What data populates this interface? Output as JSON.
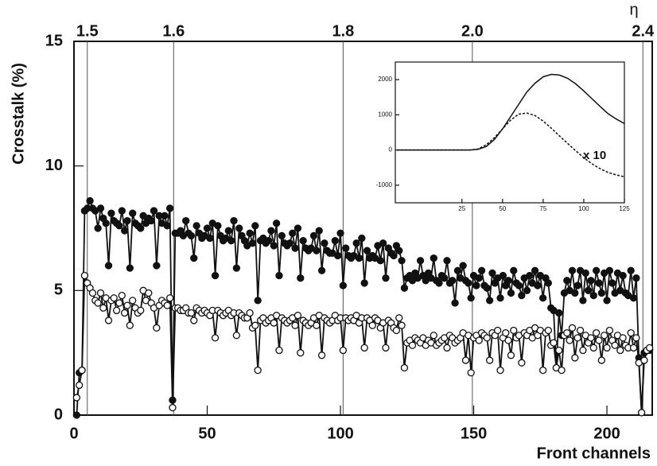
{
  "chart_data": [
    {
      "type": "line",
      "x_label": "Front channels",
      "y_label": "Crosstalk (%)",
      "eta_label": "η",
      "x": [
        1,
        2,
        3,
        4,
        5,
        6,
        7,
        8,
        9,
        10,
        11,
        12,
        13,
        14,
        15,
        16,
        17,
        18,
        19,
        20,
        21,
        22,
        23,
        24,
        25,
        26,
        27,
        28,
        29,
        30,
        31,
        32,
        33,
        34,
        35,
        36,
        37,
        38,
        39,
        40,
        41,
        42,
        43,
        44,
        45,
        46,
        47,
        48,
        49,
        50,
        51,
        52,
        53,
        54,
        55,
        56,
        57,
        58,
        59,
        60,
        61,
        62,
        63,
        64,
        65,
        66,
        67,
        68,
        69,
        70,
        71,
        72,
        73,
        74,
        75,
        76,
        77,
        78,
        79,
        80,
        81,
        82,
        83,
        84,
        85,
        86,
        87,
        88,
        89,
        90,
        91,
        92,
        93,
        94,
        95,
        96,
        97,
        98,
        99,
        100,
        101,
        102,
        103,
        104,
        105,
        106,
        107,
        108,
        109,
        110,
        111,
        112,
        113,
        114,
        115,
        116,
        117,
        118,
        119,
        120,
        121,
        122,
        123,
        124,
        125,
        126,
        127,
        128,
        129,
        130,
        131,
        132,
        133,
        134,
        135,
        136,
        137,
        138,
        139,
        140,
        141,
        142,
        143,
        144,
        145,
        146,
        147,
        148,
        149,
        150,
        151,
        152,
        153,
        154,
        155,
        156,
        157,
        158,
        159,
        160,
        161,
        162,
        163,
        164,
        165,
        166,
        167,
        168,
        169,
        170,
        171,
        172,
        173,
        174,
        175,
        176,
        177,
        178,
        179,
        180,
        181,
        182,
        183,
        184,
        185,
        186,
        187,
        188,
        189,
        190,
        191,
        192,
        193,
        194,
        195,
        196,
        197,
        198,
        199,
        200,
        201,
        202,
        203,
        204,
        205,
        206,
        207,
        208,
        209,
        210,
        211,
        212,
        213,
        214,
        215,
        216
      ],
      "series": [
        {
          "marker": "filled",
          "color": "#111111",
          "values": [
            0.0,
            1.7,
            1.8,
            8.2,
            8.3,
            8.6,
            8.3,
            8.2,
            7.5,
            8.3,
            7.9,
            7.7,
            6.0,
            8.1,
            7.8,
            7.7,
            7.6,
            8.2,
            7.4,
            7.8,
            5.9,
            8.1,
            7.7,
            7.6,
            7.5,
            8.0,
            7.7,
            7.9,
            7.8,
            8.2,
            6.0,
            8.0,
            7.7,
            8.0,
            7.6,
            8.3,
            0.6,
            7.3,
            7.3,
            7.4,
            7.2,
            7.8,
            7.3,
            7.2,
            6.3,
            7.6,
            7.3,
            7.1,
            7.2,
            7.5,
            7.1,
            7.7,
            5.6,
            7.6,
            7.2,
            7.0,
            7.1,
            7.4,
            7.0,
            7.8,
            5.9,
            7.5,
            7.2,
            7.0,
            6.8,
            7.3,
            6.9,
            7.6,
            4.6,
            7.0,
            7.1,
            6.9,
            7.0,
            7.4,
            6.8,
            7.7,
            5.6,
            7.2,
            6.9,
            6.8,
            6.9,
            7.3,
            6.7,
            7.5,
            5.5,
            7.0,
            6.7,
            6.6,
            6.7,
            7.2,
            6.6,
            7.4,
            5.8,
            6.9,
            6.6,
            6.5,
            6.5,
            7.0,
            6.4,
            7.3,
            5.2,
            6.7,
            6.4,
            6.3,
            6.4,
            6.9,
            6.3,
            7.1,
            5.3,
            6.6,
            6.3,
            6.4,
            6.3,
            6.8,
            6.2,
            6.9,
            5.5,
            6.7,
            6.5,
            6.4,
            6.8,
            6.6,
            6.2,
            5.1,
            5.5,
            5.6,
            5.4,
            5.7,
            5.5,
            6.2,
            5.6,
            5.4,
            5.7,
            5.5,
            6.3,
            5.4,
            5.3,
            5.6,
            5.5,
            6.2,
            5.3,
            5.4,
            4.5,
            5.8,
            5.5,
            6.0,
            5.4,
            5.3,
            4.7,
            5.6,
            5.2,
            5.5,
            5.8,
            5.2,
            5.1,
            4.6,
            5.7,
            5.3,
            5.5,
            4.7,
            5.6,
            5.2,
            5.4,
            4.9,
            5.8,
            5.3,
            5.2,
            4.8,
            5.5,
            5.0,
            5.6,
            5.3,
            5.8,
            5.2,
            5.6,
            4.7,
            5.5,
            5.3,
            4.3,
            4.2,
            1.9,
            4.1,
            3.2,
            4.9,
            5.4,
            5.0,
            5.8,
            4.9,
            5.2,
            5.8,
            4.6,
            5.7,
            5.0,
            5.4,
            4.8,
            5.8,
            5.3,
            4.9,
            5.7,
            4.6,
            5.8,
            5.3,
            4.9,
            5.7,
            5.0,
            5.6,
            4.9,
            4.8,
            5.8,
            4.7,
            5.5,
            2.3,
            0.1,
            2.5,
            2.6,
            2.6
          ]
        },
        {
          "marker": "open",
          "color": "#111111",
          "values": [
            0.7,
            1.2,
            1.8,
            5.6,
            5.3,
            5.1,
            4.9,
            4.6,
            4.5,
            4.9,
            4.3,
            4.7,
            3.8,
            4.6,
            4.7,
            4.2,
            4.5,
            4.8,
            4.1,
            4.4,
            3.6,
            4.6,
            4.3,
            4.1,
            4.2,
            5.0,
            4.6,
            4.9,
            4.5,
            4.3,
            3.5,
            4.4,
            4.6,
            4.5,
            4.4,
            4.7,
            0.3,
            4.3,
            4.3,
            4.2,
            4.2,
            4.3,
            4.1,
            4.1,
            3.8,
            4.3,
            4.2,
            4.1,
            4.2,
            4.1,
            4.0,
            4.2,
            3.1,
            4.2,
            4.1,
            4.0,
            4.1,
            4.2,
            4.0,
            4.1,
            3.2,
            4.1,
            4.0,
            3.9,
            3.9,
            4.1,
            3.5,
            3.6,
            1.8,
            3.8,
            3.9,
            3.7,
            3.8,
            3.9,
            3.7,
            4.0,
            2.6,
            3.9,
            3.8,
            3.7,
            3.8,
            3.9,
            3.6,
            4.0,
            2.5,
            3.8,
            3.7,
            3.6,
            3.7,
            3.9,
            3.6,
            4.0,
            2.4,
            3.9,
            3.8,
            3.7,
            3.8,
            4.0,
            3.8,
            3.9,
            2.6,
            3.9,
            3.8,
            3.9,
            3.8,
            4.0,
            3.7,
            3.9,
            2.7,
            3.9,
            3.8,
            3.6,
            3.9,
            3.8,
            3.5,
            3.7,
            2.7,
            3.8,
            3.7,
            3.5,
            3.4,
            3.9,
            3.6,
            1.9,
            2.9,
            3.0,
            2.8,
            3.1,
            3.0,
            2.9,
            3.1,
            2.8,
            3.0,
            2.9,
            3.2,
            2.8,
            2.9,
            3.0,
            3.1,
            2.7,
            3.2,
            3.1,
            2.9,
            3.0,
            3.1,
            3.3,
            2.2,
            3.2,
            1.7,
            3.1,
            3.2,
            3.0,
            3.3,
            3.2,
            3.1,
            2.2,
            3.3,
            3.2,
            3.4,
            1.8,
            3.1,
            3.3,
            3.0,
            2.4,
            3.4,
            3.1,
            3.2,
            2.1,
            3.3,
            3.2,
            3.4,
            3.1,
            3.5,
            3.2,
            3.4,
            1.8,
            3.3,
            3.4,
            2.8,
            2.9,
            1.9,
            2.6,
            1.8,
            3.2,
            3.3,
            3.0,
            3.5,
            2.3,
            3.1,
            3.4,
            2.6,
            3.2,
            2.9,
            3.1,
            2.7,
            3.3,
            3.0,
            2.2,
            3.2,
            2.7,
            3.4,
            3.0,
            2.8,
            3.2,
            2.6,
            3.1,
            2.8,
            2.7,
            3.3,
            2.7,
            3.1,
            2.1,
            0.1,
            2.2,
            2.6,
            2.7
          ]
        }
      ],
      "xlim": [
        0,
        217
      ],
      "ylim": [
        0,
        15
      ],
      "xticks": [
        0,
        50,
        100,
        150,
        200
      ],
      "yticks": [
        0,
        5,
        10,
        15
      ],
      "eta_ticks": [
        {
          "value": 5,
          "label": "1.5"
        },
        {
          "value": 37.4,
          "label": "1.6"
        },
        {
          "value": 101,
          "label": "1.8"
        },
        {
          "value": 149.5,
          "label": "2.0"
        },
        {
          "value": 213.5,
          "label": "2.4"
        }
      ]
    },
    {
      "type": "line",
      "annotations": [
        "x 10"
      ],
      "x": [
        -15,
        0,
        10,
        20,
        30,
        35,
        40,
        45,
        50,
        55,
        60,
        65,
        70,
        75,
        80,
        85,
        90,
        95,
        100,
        105,
        110,
        115,
        120,
        125
      ],
      "series": [
        {
          "color": "#111111",
          "dash": false,
          "values": [
            0,
            0,
            0,
            0,
            0,
            20,
            100,
            300,
            600,
            950,
            1300,
            1650,
            1900,
            2080,
            2150,
            2130,
            2040,
            1880,
            1680,
            1460,
            1240,
            1030,
            880,
            750
          ]
        },
        {
          "color": "#111111",
          "dash": true,
          "values": [
            0,
            0,
            0,
            0,
            0,
            30,
            150,
            350,
            600,
            850,
            1020,
            1050,
            980,
            820,
            620,
            400,
            190,
            -20,
            -220,
            -390,
            -530,
            -640,
            -710,
            -760
          ]
        }
      ],
      "xlim": [
        -16,
        125
      ],
      "ylim": [
        -1500,
        2500
      ],
      "xticks": [
        25,
        50,
        75,
        100,
        125
      ],
      "yticks": [
        -1000,
        0,
        1000,
        2000
      ]
    }
  ]
}
